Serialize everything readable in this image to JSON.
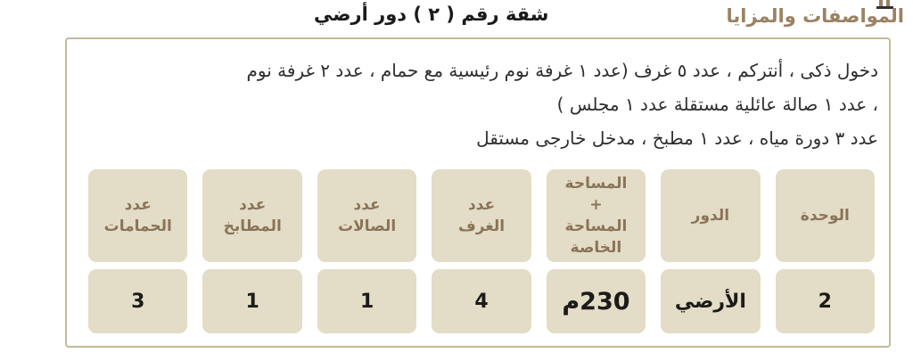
{
  "header": {
    "section_title": "المواصفات والمزايا",
    "unit_title": "شقة رقم ( ٢ ) دور أرضي"
  },
  "description": {
    "line1": "دخول ذكى ، أنتركم ، عدد ٥ غرف (عدد ١ غرفة نوم رئيسية مع حمام ، عدد ٢ غرفة نوم",
    "line2": "، عدد ١ صالة عائلية مستقلة عدد ١ مجلس )",
    "line3": "عدد ٣ دورة مياه ، عدد ١ مطبخ ، مدخل خارجى مستقل"
  },
  "spec_table": {
    "columns": [
      {
        "header": "الوحدة",
        "value": "2"
      },
      {
        "header": "الدور",
        "value": "الأرضي"
      },
      {
        "header": "المساحة\n+\nالمساحة\nالخاصة",
        "value": "230م"
      },
      {
        "header": "عدد\nالغرف",
        "value": "4"
      },
      {
        "header": "عدد\nالصالات",
        "value": "1"
      },
      {
        "header": "عدد\nالمطابخ",
        "value": "1"
      },
      {
        "header": "عدد\nالحمامات",
        "value": "3"
      }
    ]
  },
  "colors": {
    "accent_gold": "#9a8263",
    "cell_beige": "#e3dcc6",
    "header_text_brown": "#8a7459",
    "panel_border": "#c3ba98",
    "dark_text": "#1d1b18"
  }
}
